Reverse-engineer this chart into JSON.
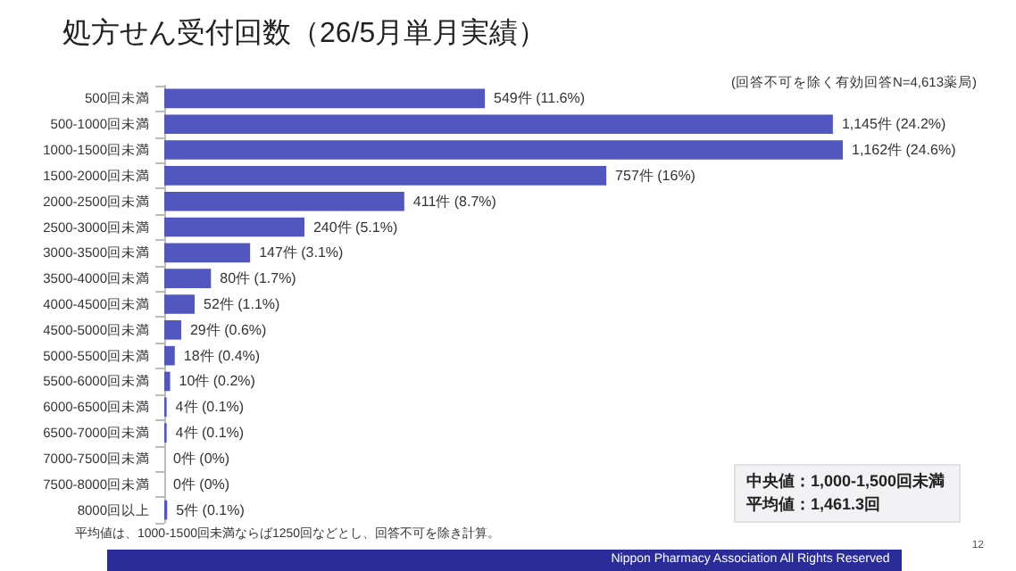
{
  "chart_data": {
    "type": "bar",
    "orientation": "horizontal",
    "title": "処方せん受付回数（26/5月単月実績）",
    "categories": [
      "500回未満",
      "500-1000回未満",
      "1000-1500回未満",
      "1500-2000回未満",
      "2000-2500回未満",
      "2500-3000回未満",
      "3000-3500回未満",
      "3500-4000回未満",
      "4000-4500回未満",
      "4500-5000回未満",
      "5000-5500回未満",
      "5500-6000回未満",
      "6000-6500回未満",
      "6500-7000回未満",
      "7000-7500回未満",
      "7500-8000回未満",
      "8000回以上"
    ],
    "values": [
      549,
      1145,
      1162,
      757,
      411,
      240,
      147,
      80,
      52,
      29,
      18,
      10,
      4,
      4,
      0,
      0,
      5
    ],
    "value_labels": [
      "549件 (11.6%)",
      "1,145件 (24.2%)",
      "1,162件 (24.6%)",
      "757件 (16%)",
      "411件 (8.7%)",
      "240件 (5.1%)",
      "147件 (3.1%)",
      "80件 (1.7%)",
      "52件 (1.1%)",
      "29件 (0.6%)",
      "18件 (0.4%)",
      "10件 (0.2%)",
      "4件 (0.1%)",
      "4件 (0.1%)",
      "0件 (0%)",
      "0件 (0%)",
      "5件 (0.1%)"
    ],
    "color": "#5157be",
    "annotations": [
      "(回答不可を除く有効回答N=4,613薬局)",
      "中央値：1,000-1,500回未満",
      "平均値：1,461.3回",
      "平均値は、1000-1500回未満ならば1250回などとし、回答不可を除き計算。",
      "Nippon Pharmacy Association All Rights Reserved",
      "12"
    ]
  }
}
